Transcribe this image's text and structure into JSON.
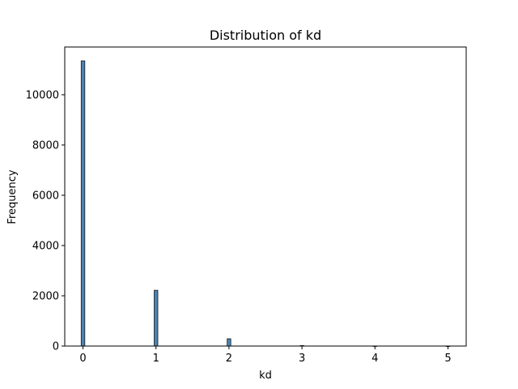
{
  "chart_data": {
    "type": "bar",
    "title": "Distribution of kd",
    "xlabel": "kd",
    "ylabel": "Frequency",
    "xlim": [
      -0.25,
      5.25
    ],
    "ylim": [
      0,
      11900
    ],
    "bin_width": 0.05,
    "x_ticks": [
      0,
      1,
      2,
      3,
      4,
      5
    ],
    "y_ticks": [
      0,
      2000,
      4000,
      6000,
      8000,
      10000
    ],
    "bars": [
      {
        "x": 0,
        "value": 11350
      },
      {
        "x": 1,
        "value": 2220
      },
      {
        "x": 2,
        "value": 290
      },
      {
        "x": 3,
        "value": 20
      },
      {
        "x": 4,
        "value": 3
      },
      {
        "x": 5,
        "value": 1
      }
    ],
    "bar_color": "#4a84b4",
    "bar_edge_color": "#1a1a1a",
    "grid": false
  }
}
